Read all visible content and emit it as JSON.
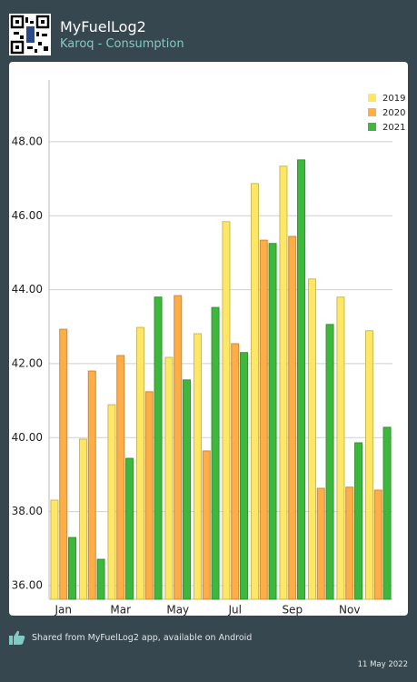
{
  "header": {
    "title": "MyFuelLog2",
    "subtitle": "Karoq - Consumption"
  },
  "chart_data": {
    "type": "bar",
    "categories": [
      "Jan",
      null,
      "Mar",
      null,
      "May",
      null,
      "Jul",
      null,
      "Sep",
      null,
      "Nov",
      null
    ],
    "series": [
      {
        "name": "2019",
        "color": "#ffe766",
        "values": [
          38.31,
          39.96,
          40.89,
          42.98,
          42.17,
          42.81,
          45.84,
          46.87,
          47.34,
          44.29,
          43.8,
          42.89
        ]
      },
      {
        "name": "2020",
        "color": "#ffad47",
        "values": [
          42.93,
          41.8,
          42.22,
          41.24,
          43.84,
          39.64,
          42.54,
          45.34,
          45.44,
          38.63,
          38.66,
          38.58
        ]
      },
      {
        "name": "2021",
        "color": "#3db83d",
        "values": [
          37.3,
          36.71,
          39.44,
          43.8,
          41.56,
          43.52,
          42.3,
          45.25,
          47.51,
          43.06,
          39.86,
          40.28
        ]
      }
    ],
    "ylim": [
      35.63,
      49.67
    ],
    "yticks": [
      {
        "value": 36,
        "label": "36.00"
      },
      {
        "value": 38,
        "label": "38.00"
      },
      {
        "value": 40,
        "label": "40.00"
      },
      {
        "value": 42,
        "label": "42.00"
      },
      {
        "value": 44,
        "label": "44.00"
      },
      {
        "value": 46,
        "label": "46.00"
      },
      {
        "value": 48,
        "label": "48.00"
      }
    ],
    "grid": true,
    "legend": "top-right"
  },
  "footer": {
    "share": "Shared from MyFuelLog2 app, available on Android",
    "date": "11 May 2022"
  }
}
